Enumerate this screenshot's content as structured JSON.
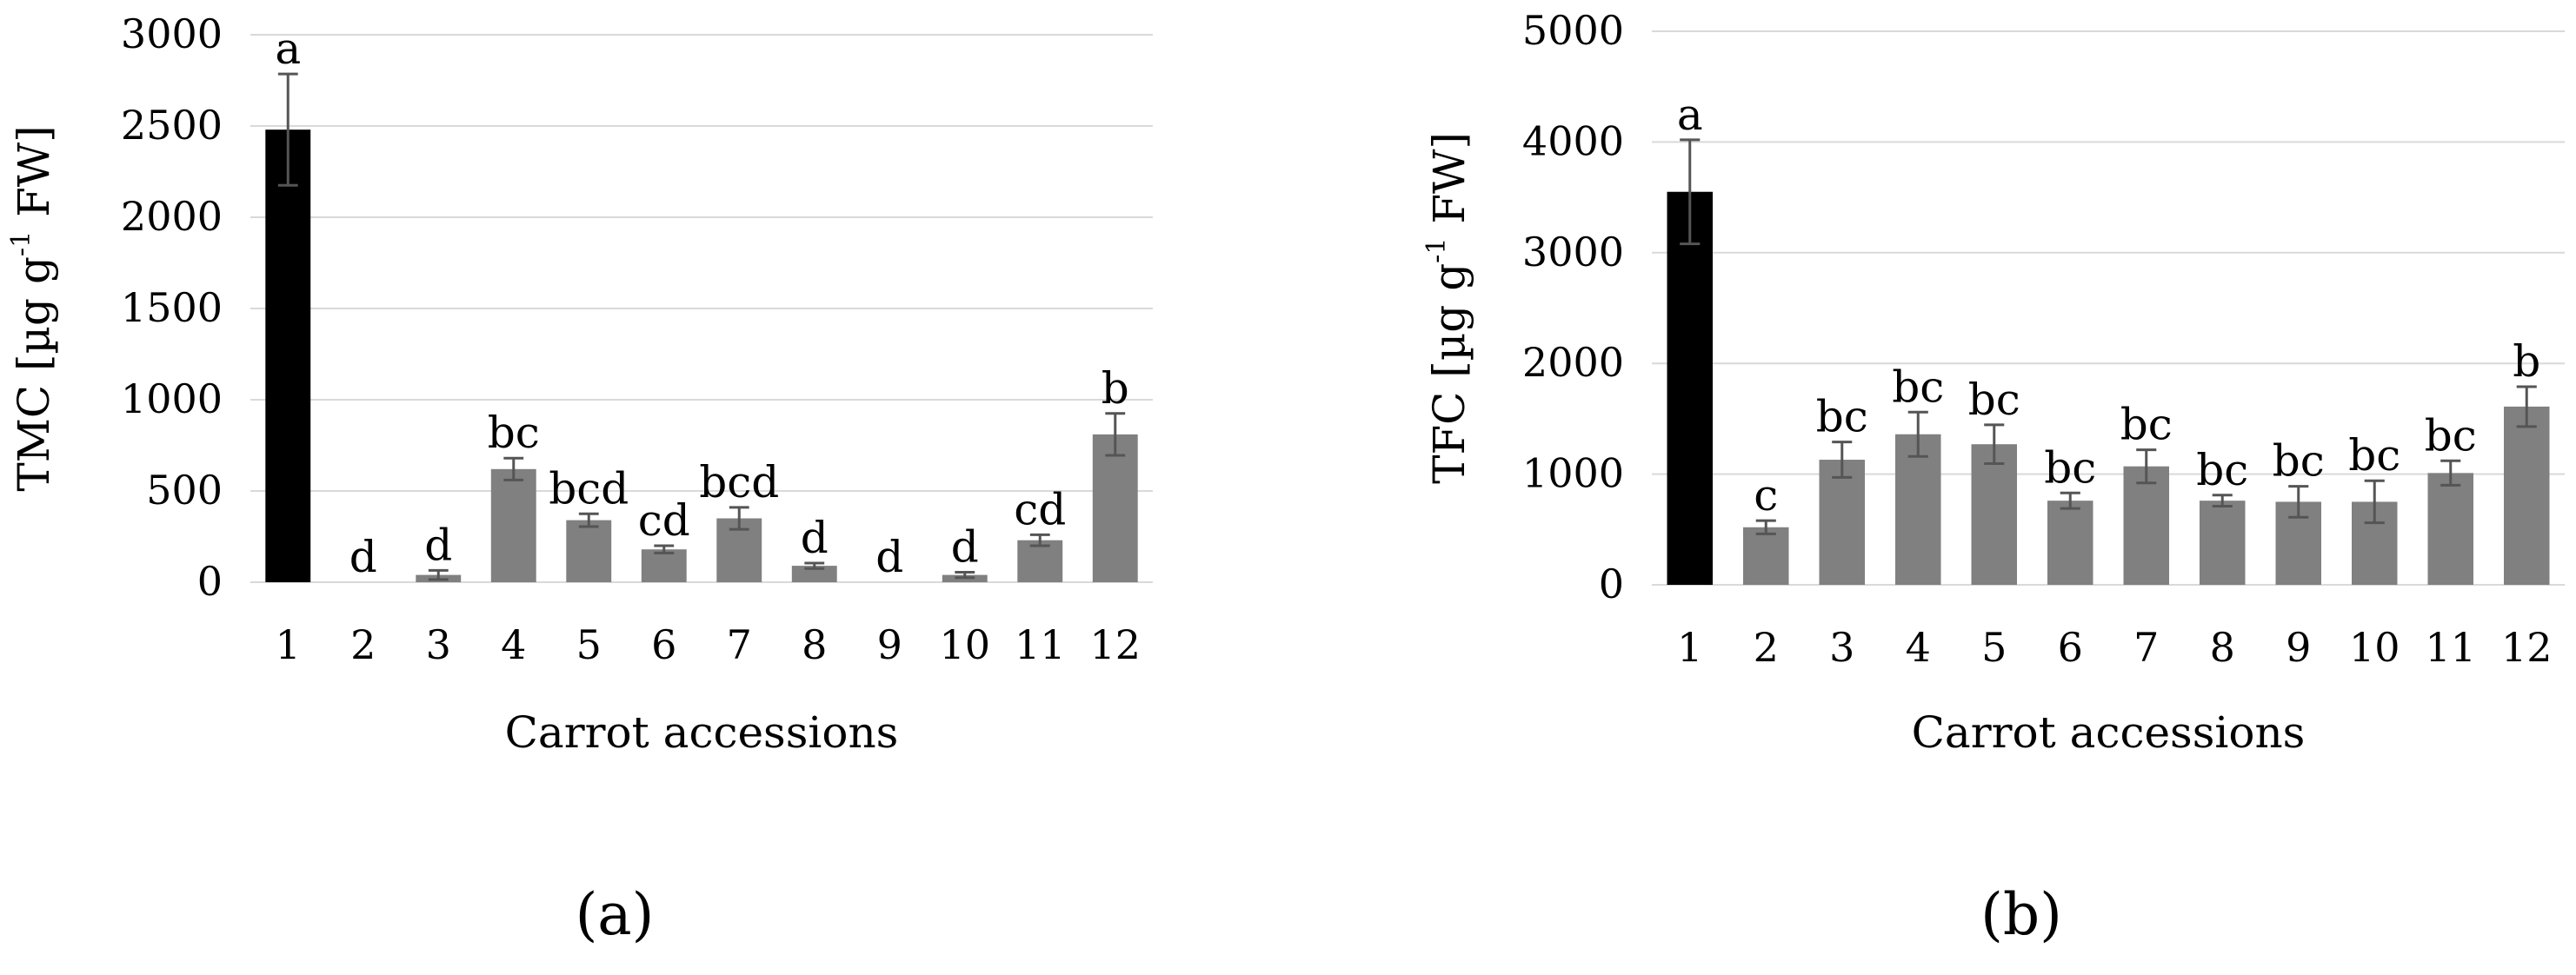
{
  "chart_data": [
    {
      "type": "bar",
      "panel_label": "(a)",
      "categories": [
        "1",
        "2",
        "3",
        "4",
        "5",
        "6",
        "7",
        "8",
        "9",
        "10",
        "11",
        "12"
      ],
      "values": [
        2480,
        0,
        40,
        620,
        340,
        180,
        350,
        90,
        0,
        40,
        230,
        810
      ],
      "errors": [
        305,
        0,
        25,
        60,
        35,
        20,
        60,
        15,
        0,
        15,
        30,
        115
      ],
      "letters": [
        "a",
        "d",
        "d",
        "bc",
        "bcd",
        "cd",
        "bcd",
        "d",
        "d",
        "d",
        "cd",
        "b"
      ],
      "bar_colors": [
        "#000000",
        "#808080",
        "#808080",
        "#808080",
        "#808080",
        "#808080",
        "#808080",
        "#808080",
        "#808080",
        "#808080",
        "#808080",
        "#808080"
      ],
      "ylabel_main": "TMC [µg g",
      "ylabel_sup": "-1",
      "ylabel_tail": " FW]",
      "xlabel": "Carrot accessions",
      "ylim": [
        0,
        3000
      ],
      "yticks": [
        0,
        500,
        1000,
        1500,
        2000,
        2500,
        3000
      ],
      "grid": true
    },
    {
      "type": "bar",
      "panel_label": "(b)",
      "categories": [
        "1",
        "2",
        "3",
        "4",
        "5",
        "6",
        "7",
        "8",
        "9",
        "10",
        "11",
        "12"
      ],
      "values": [
        3550,
        520,
        1130,
        1360,
        1270,
        760,
        1070,
        760,
        750,
        750,
        1010,
        1610
      ],
      "errors": [
        470,
        60,
        160,
        200,
        175,
        70,
        150,
        50,
        140,
        190,
        110,
        180
      ],
      "letters": [
        "a",
        "c",
        "bc",
        "bc",
        "bc",
        "bc",
        "bc",
        "bc",
        "bc",
        "bc",
        "bc",
        "b"
      ],
      "bar_colors": [
        "#000000",
        "#808080",
        "#808080",
        "#808080",
        "#808080",
        "#808080",
        "#808080",
        "#808080",
        "#808080",
        "#808080",
        "#808080",
        "#808080"
      ],
      "ylabel_main": "TFC [µg g",
      "ylabel_sup": "-1",
      "ylabel_tail": " FW]",
      "xlabel": "Carrot accessions",
      "ylim": [
        0,
        5000
      ],
      "yticks": [
        0,
        1000,
        2000,
        3000,
        4000,
        5000
      ],
      "grid": true
    }
  ]
}
